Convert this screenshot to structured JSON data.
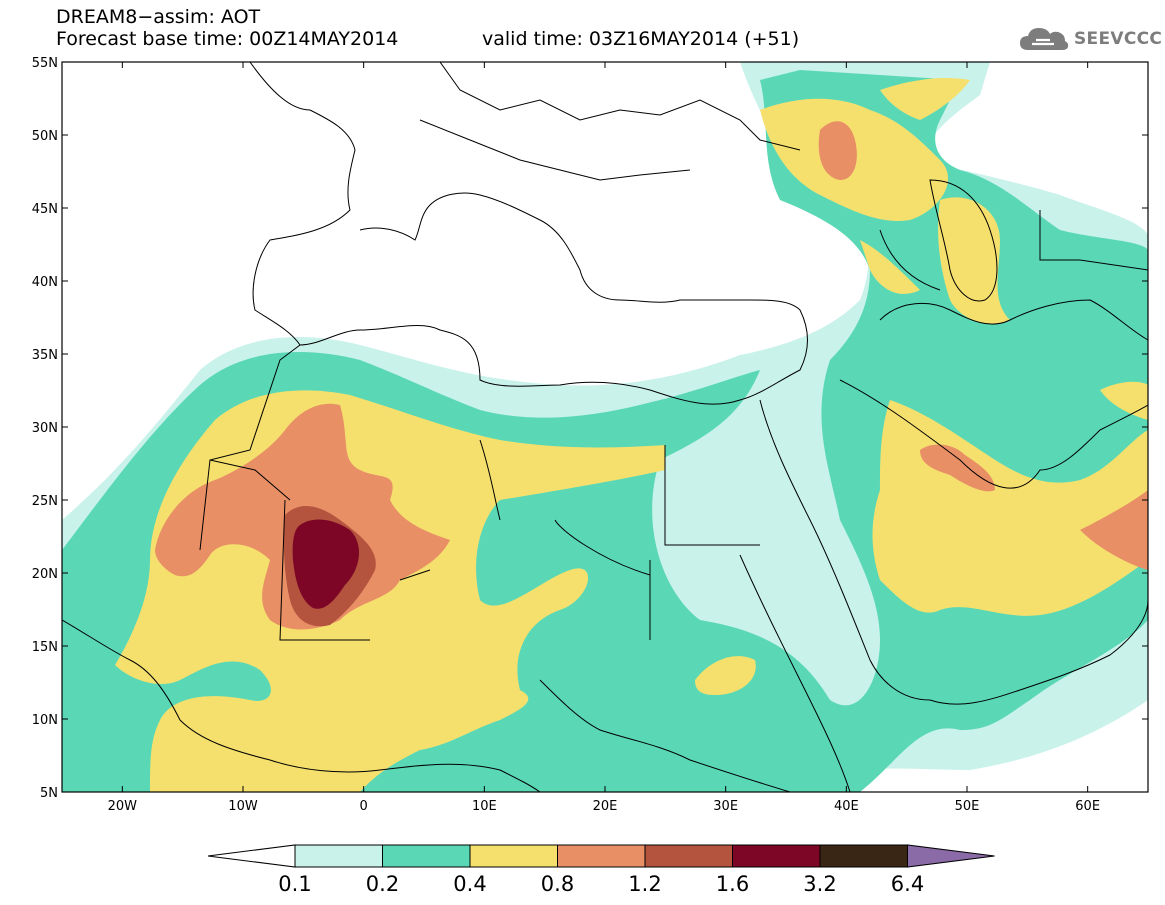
{
  "header": {
    "model_title": "DREAM8−assim: AOT",
    "base_time_line": "Forecast base time: 00Z14MAY2014",
    "valid_time_line": "valid time: 03Z16MAY2014 (+51)"
  },
  "logo": {
    "text": "SEEVCCC",
    "icon": "cloud-icon"
  },
  "map": {
    "lon_range": [
      -25,
      65
    ],
    "lat_range": [
      5,
      55
    ],
    "lat_ticks": [
      "55N",
      "50N",
      "45N",
      "40N",
      "35N",
      "30N",
      "25N",
      "20N",
      "15N",
      "10N",
      "5N"
    ],
    "lon_ticks": [
      "20W",
      "10W",
      "0",
      "10E",
      "20E",
      "30E",
      "40E",
      "50E",
      "60E"
    ],
    "variable": "Aerosol optical thickness"
  },
  "legend": {
    "levels": [
      "0.1",
      "0.2",
      "0.4",
      "0.8",
      "1.2",
      "1.6",
      "3.2",
      "6.4"
    ],
    "colors": [
      "#ffffff",
      "#c8f2ea",
      "#5ad8b6",
      "#f5e06e",
      "#e88f66",
      "#b4533e",
      "#7d0626",
      "#3a2614",
      "#8b6aa8"
    ]
  }
}
